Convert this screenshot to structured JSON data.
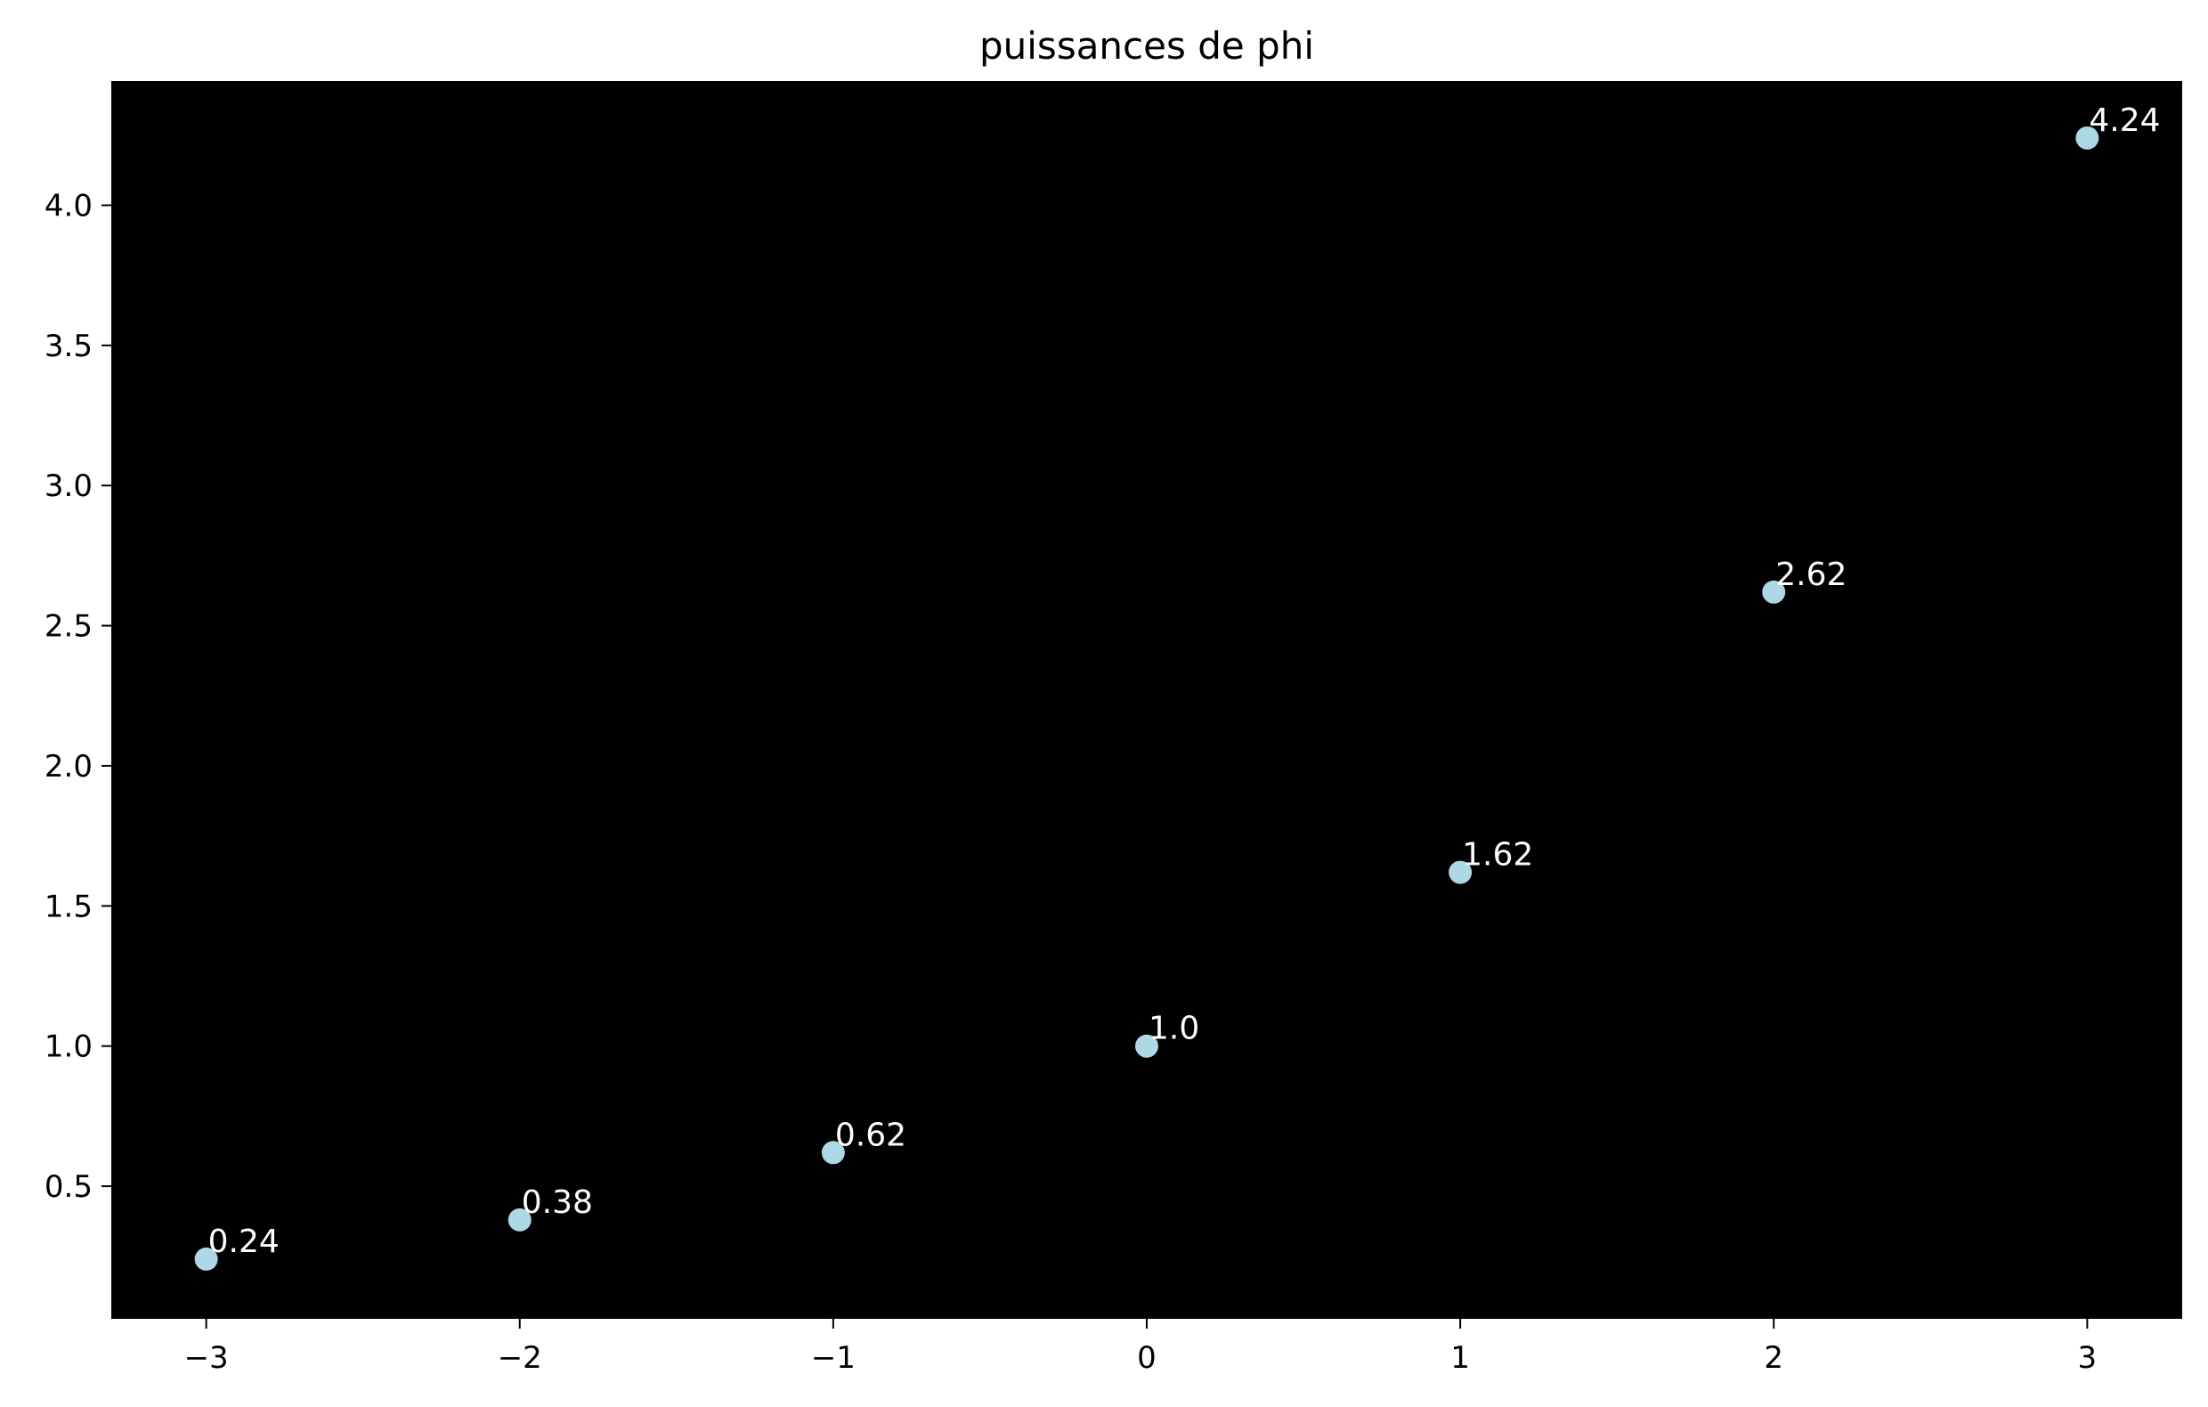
{
  "chart_data": {
    "type": "scatter",
    "title": "puissances de phi",
    "xlabel": "",
    "ylabel": "",
    "x": [
      -3,
      -2,
      -1,
      0,
      1,
      2,
      3
    ],
    "y": [
      0.24,
      0.38,
      0.62,
      1.0,
      1.62,
      2.62,
      4.24
    ],
    "point_labels": [
      "0.24",
      "0.38",
      "0.62",
      "1.0",
      "1.62",
      "2.62",
      "4.24"
    ],
    "xlim": [
      -3.3,
      3.3
    ],
    "ylim": [
      0.03,
      4.44
    ],
    "x_ticks": [
      -3,
      -2,
      -1,
      0,
      1,
      2,
      3
    ],
    "x_tick_labels": [
      "−3",
      "−2",
      "−1",
      "0",
      "1",
      "2",
      "3"
    ],
    "y_ticks": [
      0.5,
      1.0,
      1.5,
      2.0,
      2.5,
      3.0,
      3.5,
      4.0
    ],
    "y_tick_labels": [
      "0.5",
      "1.0",
      "1.5",
      "2.0",
      "2.5",
      "3.0",
      "3.5",
      "4.0"
    ],
    "grid": false,
    "legend": "none",
    "plot_background": "#000000",
    "marker_color": "#add8e6",
    "label_color": "#ffffff"
  }
}
